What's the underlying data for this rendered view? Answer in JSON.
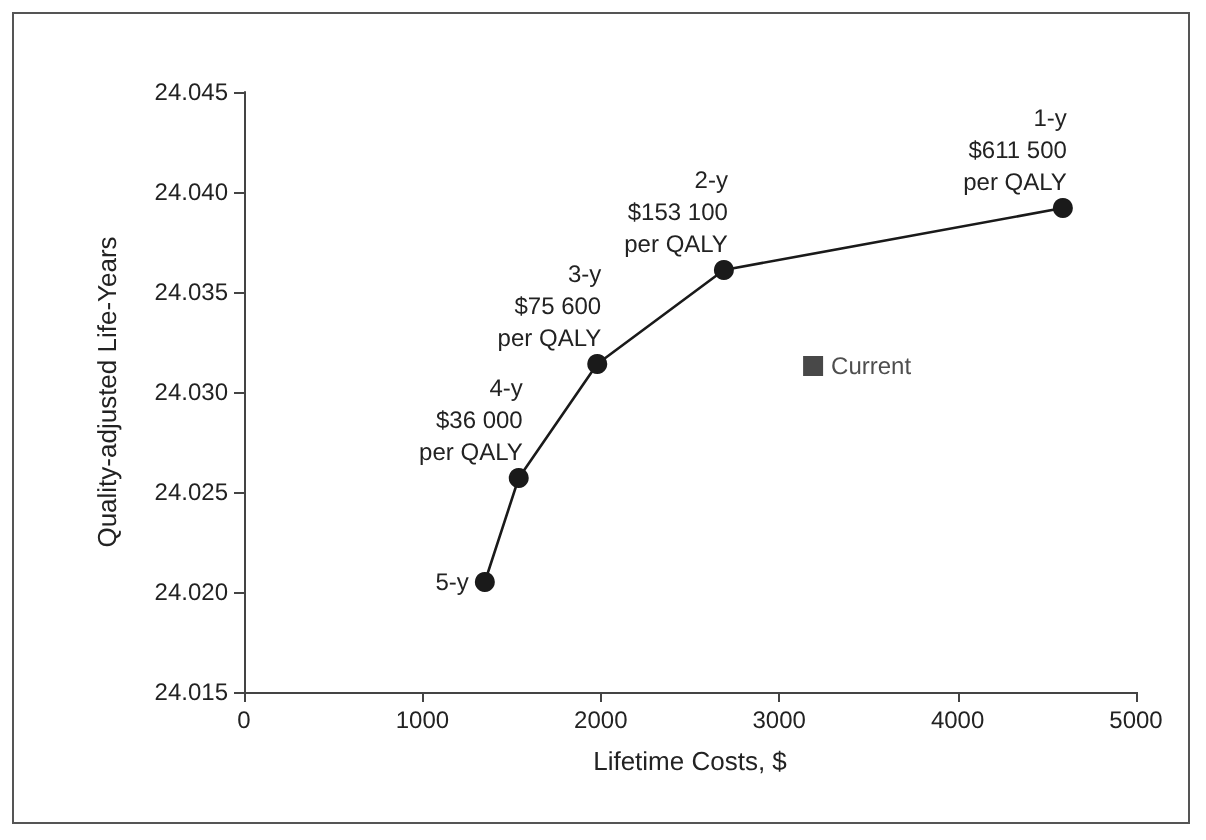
{
  "chart_data": {
    "type": "line",
    "xlabel": "Lifetime Costs, $",
    "ylabel": "Quality-adjusted Life-Years",
    "xlim": [
      0,
      5000
    ],
    "xticks": [
      0,
      1000,
      2000,
      3000,
      4000,
      5000
    ],
    "ylim": [
      24.015,
      24.045
    ],
    "yticks": [
      24.015,
      {
        "value": 24.02,
        "label": "24.020"
      },
      24.025,
      {
        "value": 24.03,
        "label": "24.030"
      },
      24.035,
      {
        "value": 24.04,
        "label": "24.040"
      },
      24.045
    ],
    "grid": false,
    "legend": false,
    "annotations": [
      {
        "text": "5-y",
        "x": 1350,
        "y": 24.0205
      },
      {
        "text": "4-y\n$36 000\nper QALY",
        "x": 1540,
        "y": 24.0257
      },
      {
        "text": "3-y\n$75 600\nper QALY",
        "x": 1980,
        "y": 24.0314
      },
      {
        "text": "2-y\n$153 100\nper QALY",
        "x": 2690,
        "y": 24.0361
      },
      {
        "text": "1-y\n$611 500\nper QALY",
        "x": 4590,
        "y": 24.0392
      }
    ],
    "series": [
      {
        "type": "line",
        "color": "#1a1a1a",
        "marker": "circle",
        "x": [
          1350,
          1540,
          1980,
          2690,
          4590
        ],
        "values": [
          24.0205,
          24.0257,
          24.0314,
          24.0361,
          24.0392
        ]
      },
      {
        "type": "scatter",
        "name": "Current",
        "color": "#1a1a1a",
        "marker": "square",
        "x": [
          3190
        ],
        "values": [
          24.0313
        ]
      }
    ]
  }
}
